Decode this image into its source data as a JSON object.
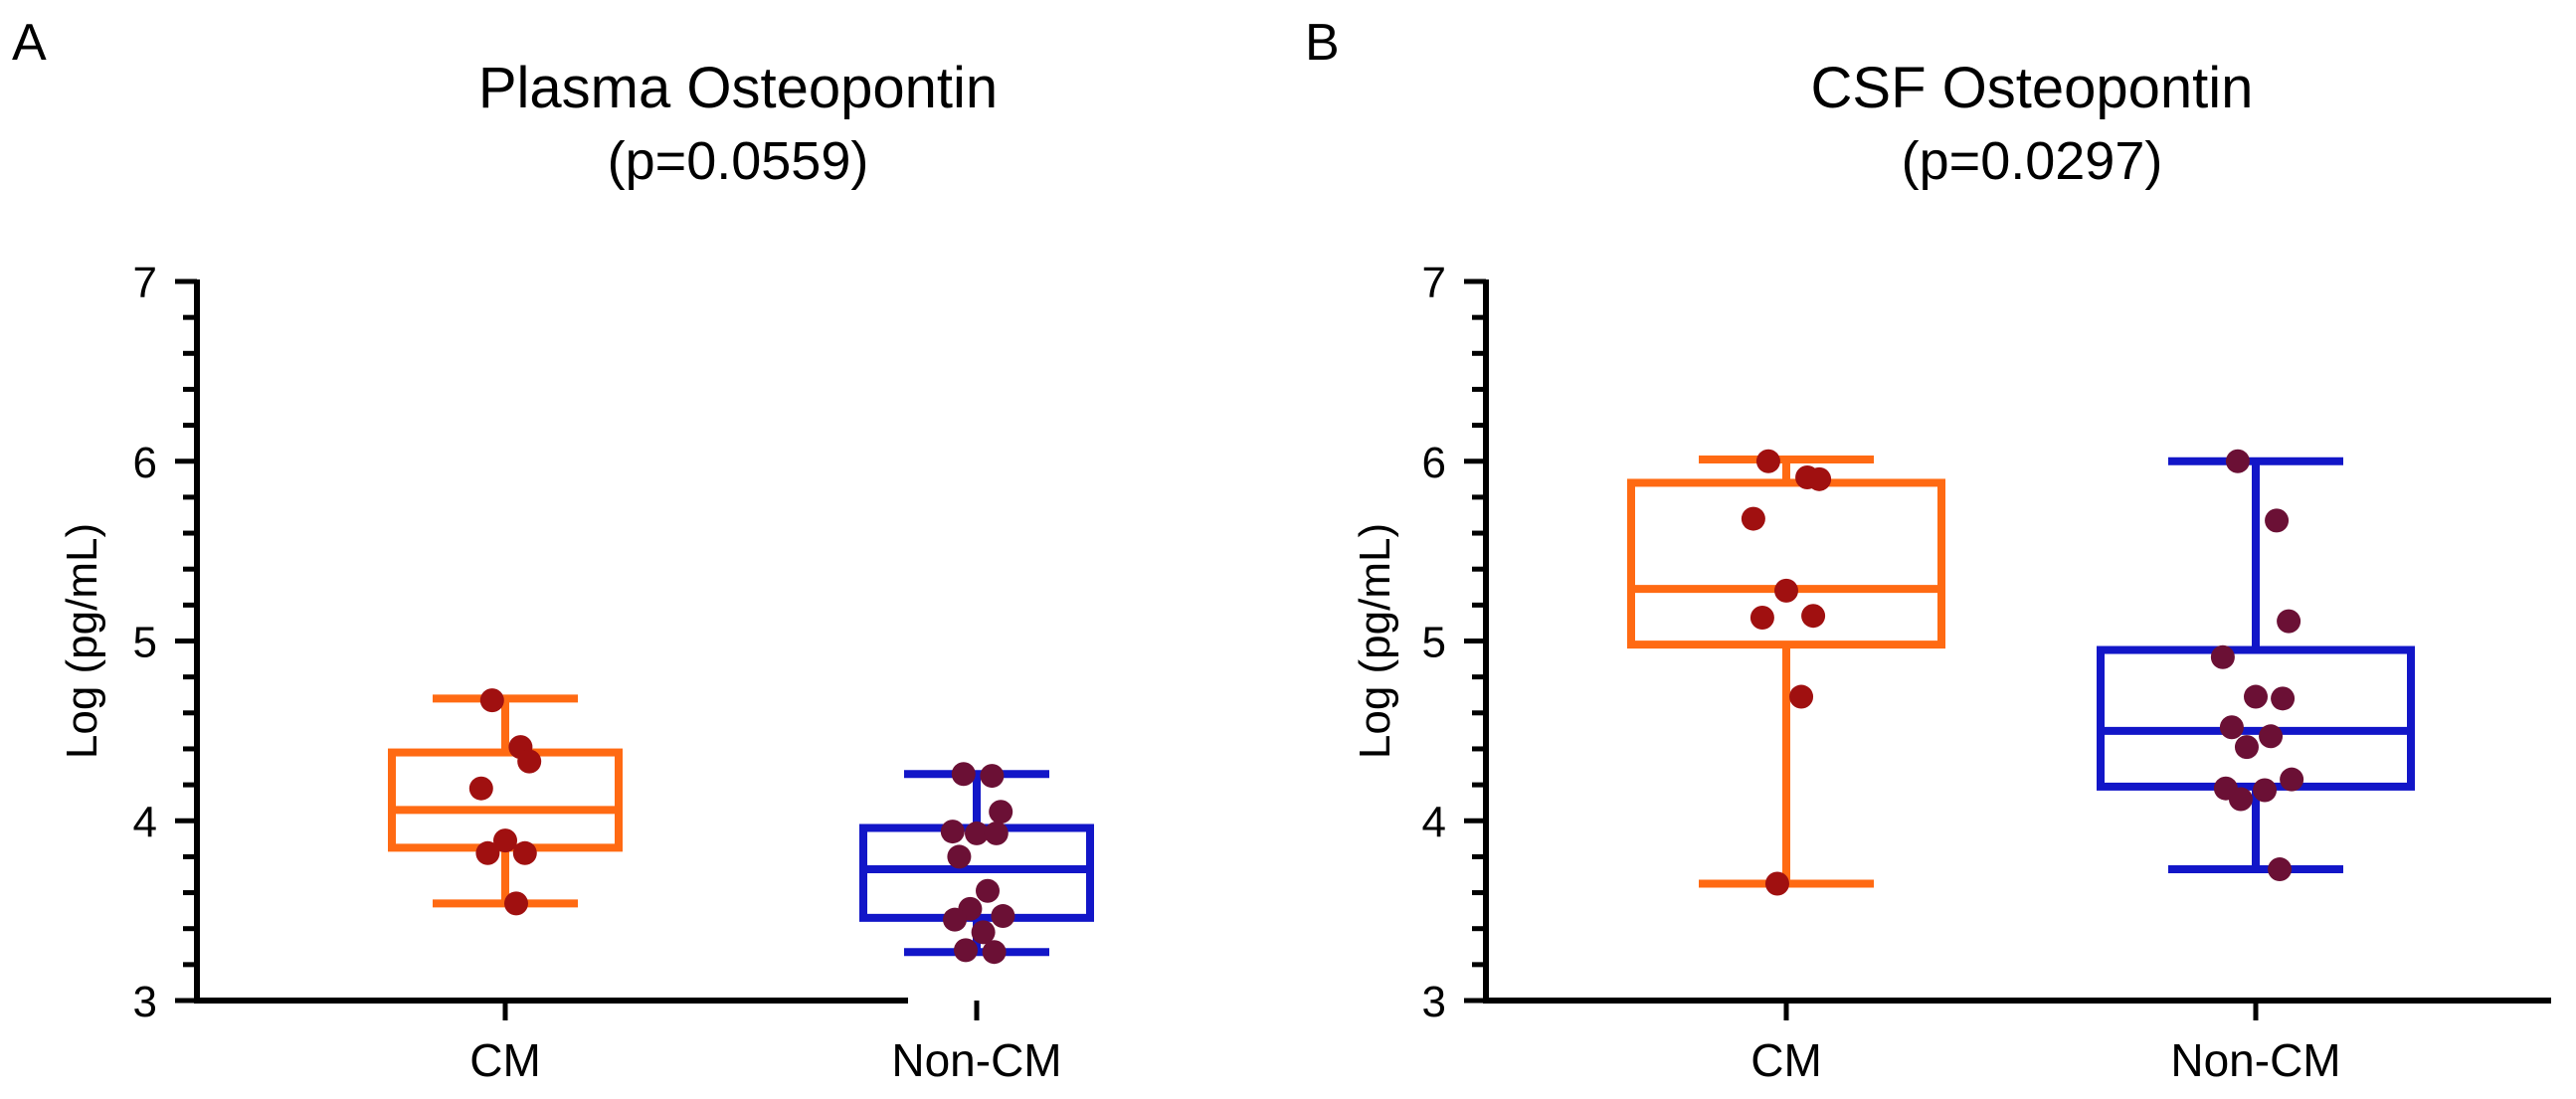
{
  "chart_data": [
    {
      "panel": "A",
      "type": "box",
      "title": "Plasma Osteopontin",
      "subtitle": "(p=0.0559)",
      "ylabel": "Log (pg/mL)",
      "ylim": [
        3,
        7
      ],
      "yticks": [
        "3",
        "4",
        "5",
        "6",
        "7"
      ],
      "categories": [
        "CM",
        "Non-CM"
      ],
      "boxes": [
        {
          "category": "CM",
          "min": 3.54,
          "q1": 3.85,
          "median": 4.06,
          "q3": 4.38,
          "max": 4.68,
          "color": "#ff6a13",
          "points": [
            4.67,
            4.41,
            4.33,
            4.18,
            3.89,
            3.82,
            3.82,
            3.54
          ]
        },
        {
          "category": "Non-CM",
          "min": 3.27,
          "q1": 3.46,
          "median": 3.73,
          "q3": 3.96,
          "max": 4.26,
          "color": "#1216c8",
          "points": [
            4.26,
            4.25,
            4.05,
            3.94,
            3.93,
            3.93,
            3.8,
            3.61,
            3.51,
            3.47,
            3.45,
            3.38,
            3.28,
            3.27
          ]
        }
      ],
      "point_color": "#6b1035"
    },
    {
      "panel": "B",
      "type": "box",
      "title": "CSF Osteopontin",
      "subtitle": "(p=0.0297)",
      "ylabel": "Log (pg/mL)",
      "ylim": [
        3,
        7
      ],
      "yticks": [
        "3",
        "4",
        "5",
        "6",
        "7"
      ],
      "categories": [
        "CM",
        "Non-CM"
      ],
      "boxes": [
        {
          "category": "CM",
          "min": 3.65,
          "q1": 4.98,
          "median": 5.29,
          "q3": 5.88,
          "max": 6.01,
          "color": "#ff6a13",
          "points": [
            6.0,
            5.91,
            5.9,
            5.68,
            5.28,
            5.14,
            5.13,
            4.69,
            3.65
          ]
        },
        {
          "category": "Non-CM",
          "min": 3.73,
          "q1": 4.19,
          "median": 4.5,
          "q3": 4.95,
          "max": 6.0,
          "color": "#1216c8",
          "points": [
            6.0,
            5.67,
            5.11,
            4.91,
            4.69,
            4.68,
            4.52,
            4.47,
            4.41,
            4.23,
            4.18,
            4.17,
            4.12,
            3.73
          ]
        }
      ],
      "point_color": "#6b1035"
    }
  ]
}
